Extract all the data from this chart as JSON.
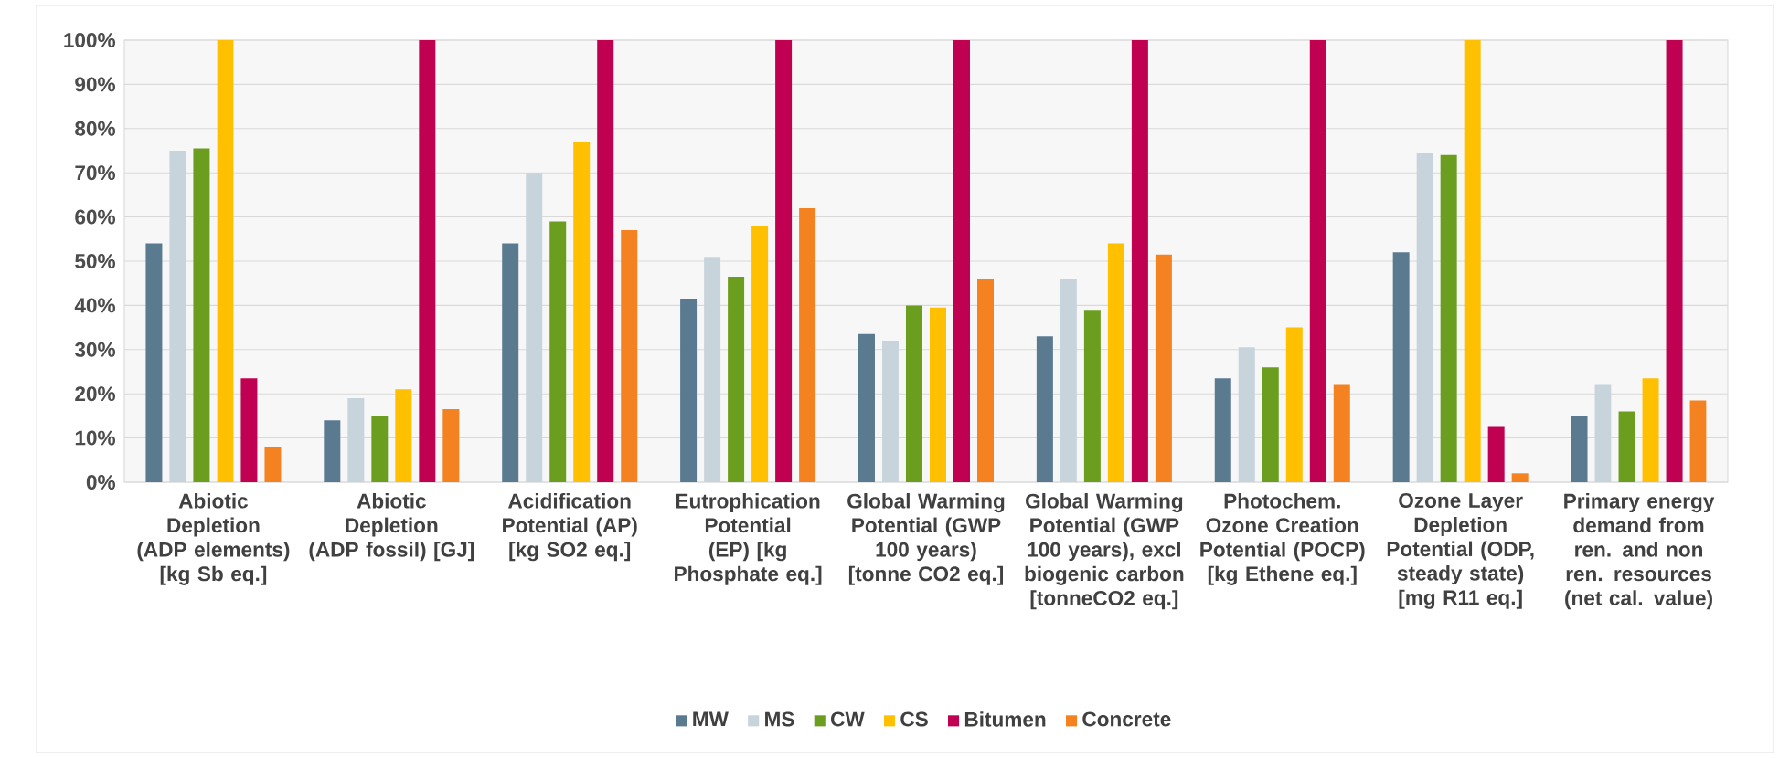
{
  "chart_data": {
    "type": "bar",
    "categories": [
      "Abiotic Depletion (ADP elements) [kg Sb eq.]",
      "Abiotic Depletion (ADP fossil) [GJ]",
      "Acidification Potential (AP) [kg SO2 eq.]",
      "Eutrophication Potential (EP) [kg Phosphate eq.]",
      "Global Warming Potential (GWP 100 years) [tonne CO2 eq.]",
      "Global Warming Potential (GWP 100 years), excl biogenic carbon [tonneCO2 eq.]",
      "Photochem. Ozone Creation Potential (POCP) [kg Ethene eq.]",
      "Ozone Layer Depletion Potential (ODP, steady state) [mg R11 eq.]",
      "Primary energy demand from ren. and non ren. resources (net cal. value)"
    ],
    "series": [
      {
        "name": "MW",
        "color": "#5a7a90",
        "values": [
          54,
          14,
          54,
          41.5,
          33.5,
          33,
          23.5,
          52,
          15
        ]
      },
      {
        "name": "MS",
        "color": "#c8d4dc",
        "values": [
          75,
          19,
          70,
          51,
          32,
          46,
          30.5,
          74.5,
          22
        ]
      },
      {
        "name": "CW",
        "color": "#6b9e1f",
        "values": [
          75.5,
          15,
          59,
          46.5,
          40,
          39,
          26,
          74,
          16
        ]
      },
      {
        "name": "CS",
        "color": "#fec000",
        "values": [
          100,
          21,
          77,
          58,
          39.5,
          54,
          35,
          100,
          23.5
        ]
      },
      {
        "name": "Bitumen",
        "color": "#c00050",
        "values": [
          23.5,
          100,
          100,
          100,
          100,
          100,
          100,
          12.5,
          100
        ]
      },
      {
        "name": "Concrete",
        "color": "#f58220",
        "values": [
          8,
          16.5,
          57,
          62,
          46,
          51.5,
          22,
          2,
          18.5
        ]
      }
    ],
    "ylim": [
      0,
      100
    ],
    "yticks": [
      {
        "value": 0,
        "label": "0%"
      },
      {
        "value": 10,
        "label": "10%"
      },
      {
        "value": 20,
        "label": "20%"
      },
      {
        "value": 30,
        "label": "30%"
      },
      {
        "value": 40,
        "label": "40%"
      },
      {
        "value": 50,
        "label": "50%"
      },
      {
        "value": 60,
        "label": "60%"
      },
      {
        "value": 70,
        "label": "70%"
      },
      {
        "value": 80,
        "label": "80%"
      },
      {
        "value": 90,
        "label": "90%"
      },
      {
        "value": 100,
        "label": "100%"
      }
    ],
    "grid": "y",
    "legend": "bottom"
  }
}
